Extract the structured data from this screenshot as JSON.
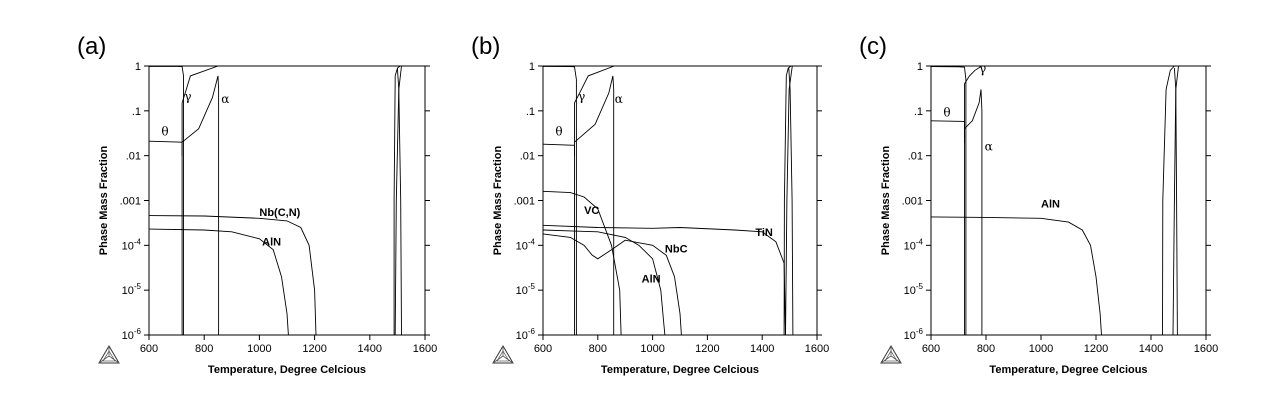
{
  "chart_data": [
    {
      "type": "line",
      "panel": "(a)",
      "xlabel": "Temperature, Degree Celcious",
      "ylabel": "Phase Mass Fraction",
      "scale": "log",
      "xlim": [
        600,
        1600
      ],
      "ylim": [
        1e-06,
        1
      ],
      "x_ticks": [
        "600",
        "800",
        "1000",
        "1200",
        "1400",
        "1600"
      ],
      "y_ticks": [
        "1",
        ".1",
        ".01",
        ".001",
        "10^-4",
        "10^-5",
        "10^-6"
      ],
      "grid": false,
      "labels": [
        {
          "text": "θ",
          "x": 645,
          "y": 0.028
        },
        {
          "text": "γ",
          "x": 728,
          "y": 0.17
        },
        {
          "text": "α",
          "x": 862,
          "y": 0.15
        },
        {
          "text": "Nb(C,N)",
          "x": 1000,
          "y": 0.00045
        },
        {
          "text": "AlN",
          "x": 1010,
          "y": 0.0001
        }
      ],
      "series": [
        {
          "x": [
            600,
            720,
            720
          ],
          "y": [
            0.021,
            0.02,
            1e-06
          ]
        },
        {
          "x": [
            600,
            700,
            720,
            725,
            725
          ],
          "y": [
            0.98,
            0.98,
            0.97,
            0.6,
            1e-06
          ]
        },
        {
          "x": [
            720,
            720,
            735,
            750,
            850
          ],
          "y": [
            0.01,
            0.15,
            0.3,
            0.6,
            1
          ]
        },
        {
          "x": [
            720,
            780,
            830,
            850,
            852,
            852
          ],
          "y": [
            0.02,
            0.04,
            0.2,
            0.6,
            0.3,
            1e-06
          ]
        },
        {
          "x": [
            600,
            800,
            1000,
            1100,
            1150,
            1180,
            1200,
            1205
          ],
          "y": [
            0.00046,
            0.00045,
            0.0004,
            0.00035,
            0.00025,
            0.0001,
            1e-05,
            1e-06
          ]
        },
        {
          "x": [
            600,
            800,
            900,
            1000,
            1050,
            1080,
            1100,
            1105
          ],
          "y": [
            0.00023,
            0.00022,
            0.0002,
            0.00014,
            8e-05,
            2e-05,
            3e-06,
            1e-06
          ]
        },
        {
          "x": [
            1488,
            1488,
            1492,
            1500,
            1510
          ],
          "y": [
            1e-06,
            0.001,
            0.6,
            0.9,
            1
          ]
        },
        {
          "x": [
            1492,
            1496,
            1505,
            1515
          ],
          "y": [
            1e-06,
            0.001,
            0.3,
            1
          ]
        },
        {
          "x": [
            1500,
            1505,
            1512,
            1515
          ],
          "y": [
            0.9,
            0.3,
            0.001,
            1e-06
          ]
        }
      ]
    },
    {
      "type": "line",
      "panel": "(b)",
      "xlabel": "Temperature, Degree Celcious",
      "ylabel": "Phase Mass Fraction",
      "scale": "log",
      "xlim": [
        600,
        1600
      ],
      "ylim": [
        1e-06,
        1
      ],
      "x_ticks": [
        "600",
        "800",
        "1000",
        "1200",
        "1400",
        "1600"
      ],
      "y_ticks": [
        "1",
        ".1",
        ".01",
        ".001",
        "10^-4",
        "10^-5",
        "10^-6"
      ],
      "grid": false,
      "labels": [
        {
          "text": "θ",
          "x": 645,
          "y": 0.028
        },
        {
          "text": "γ",
          "x": 728,
          "y": 0.17
        },
        {
          "text": "α",
          "x": 862,
          "y": 0.15
        },
        {
          "text": "VC",
          "x": 750,
          "y": 0.0005
        },
        {
          "text": "NbC",
          "x": 1045,
          "y": 7e-05
        },
        {
          "text": "AlN",
          "x": 960,
          "y": 1.5e-05
        },
        {
          "text": "TiN",
          "x": 1375,
          "y": 0.00016
        }
      ],
      "series": [
        {
          "x": [
            600,
            715,
            715
          ],
          "y": [
            0.018,
            0.017,
            1e-06
          ]
        },
        {
          "x": [
            600,
            700,
            715,
            722,
            722
          ],
          "y": [
            0.98,
            0.97,
            0.96,
            0.5,
            1e-06
          ]
        },
        {
          "x": [
            715,
            715,
            740,
            765,
            860
          ],
          "y": [
            0.01,
            0.15,
            0.3,
            0.6,
            1
          ]
        },
        {
          "x": [
            715,
            790,
            840,
            855,
            858,
            858
          ],
          "y": [
            0.02,
            0.05,
            0.25,
            0.6,
            0.3,
            1e-06
          ]
        },
        {
          "x": [
            600,
            700,
            750,
            800,
            850,
            880,
            885
          ],
          "y": [
            0.0016,
            0.0015,
            0.0012,
            0.00065,
            0.0001,
            1e-05,
            1e-06
          ]
        },
        {
          "x": [
            600,
            700,
            750,
            780,
            800,
            850,
            900,
            1000,
            1050,
            1080,
            1100,
            1105
          ],
          "y": [
            0.00018,
            0.00015,
            0.0001,
            6e-05,
            5e-05,
            8e-05,
            0.00013,
            0.0001,
            6e-05,
            2e-05,
            3e-06,
            1e-06
          ]
        },
        {
          "x": [
            600,
            700,
            800,
            900,
            950,
            1000,
            1030,
            1040,
            1045
          ],
          "y": [
            0.00022,
            0.00021,
            0.0002,
            0.00015,
            0.0001,
            5e-05,
            1e-05,
            2e-06,
            1e-06
          ]
        },
        {
          "x": [
            600,
            800,
            1000,
            1100,
            1300,
            1400,
            1450,
            1480,
            1485
          ],
          "y": [
            0.00028,
            0.00025,
            0.00024,
            0.00025,
            0.00022,
            0.0002,
            0.00012,
            4e-05,
            1e-06
          ]
        },
        {
          "x": [
            1480,
            1481,
            1488,
            1495,
            1505
          ],
          "y": [
            1e-06,
            0.001,
            0.6,
            0.9,
            1
          ]
        },
        {
          "x": [
            1485,
            1490,
            1498,
            1510
          ],
          "y": [
            1e-06,
            0.001,
            0.3,
            1
          ]
        },
        {
          "x": [
            1497,
            1502,
            1509,
            1512
          ],
          "y": [
            0.9,
            0.3,
            0.001,
            1e-06
          ]
        }
      ]
    },
    {
      "type": "line",
      "panel": "(c)",
      "xlabel": "Temperature, Degree Celcious",
      "ylabel": "Phase Mass Fraction",
      "scale": "log",
      "xlim": [
        600,
        1600
      ],
      "ylim": [
        1e-06,
        1
      ],
      "x_ticks": [
        "600",
        "800",
        "1000",
        "1200",
        "1400",
        "1600"
      ],
      "y_ticks": [
        "1",
        ".1",
        ".01",
        ".001",
        "10^-4",
        "10^-5",
        "10^-6"
      ],
      "grid": false,
      "labels": [
        {
          "text": "θ",
          "x": 645,
          "y": 0.075
        },
        {
          "text": "γ",
          "x": 775,
          "y": 0.7
        },
        {
          "text": "α",
          "x": 795,
          "y": 0.013
        },
        {
          "text": "AlN",
          "x": 1000,
          "y": 0.0007
        }
      ],
      "series": [
        {
          "x": [
            600,
            722,
            722
          ],
          "y": [
            0.06,
            0.058,
            1e-06
          ]
        },
        {
          "x": [
            600,
            700,
            722,
            727,
            727
          ],
          "y": [
            0.97,
            0.96,
            0.94,
            0.5,
            1e-06
          ]
        },
        {
          "x": [
            722,
            722,
            740,
            760,
            785
          ],
          "y": [
            0.02,
            0.4,
            0.6,
            0.8,
            1
          ]
        },
        {
          "x": [
            722,
            750,
            775,
            782,
            785,
            785
          ],
          "y": [
            0.04,
            0.06,
            0.15,
            0.3,
            0.1,
            1e-06
          ]
        },
        {
          "x": [
            600,
            800,
            1000,
            1100,
            1150,
            1180,
            1200,
            1215,
            1220
          ],
          "y": [
            0.00043,
            0.00042,
            0.0004,
            0.00033,
            0.00022,
            0.0001,
            2e-05,
            3e-06,
            1e-06
          ]
        },
        {
          "x": [
            1442,
            1443,
            1455,
            1470,
            1485
          ],
          "y": [
            1e-06,
            0.001,
            0.3,
            0.8,
            1
          ]
        },
        {
          "x": [
            1485,
            1490,
            1493,
            1496
          ],
          "y": [
            0.9,
            0.3,
            0.001,
            1e-06
          ]
        },
        {
          "x": [
            1480,
            1485,
            1490,
            1500
          ],
          "y": [
            1e-06,
            0.001,
            0.3,
            1
          ]
        }
      ]
    }
  ]
}
